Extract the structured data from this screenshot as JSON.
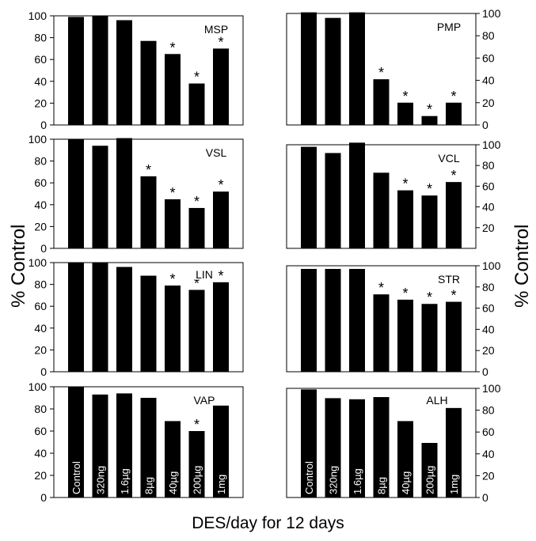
{
  "figure": {
    "ylabel_left": "% Control",
    "ylabel_right": "% Control",
    "xlabel": "DES/day for 12 days"
  },
  "chart_data": [
    {
      "type": "bar",
      "title": "MSP",
      "categories": [
        "Control",
        "320ng",
        "1.6µg",
        "8µg",
        "40µg",
        "200µg",
        "1mg"
      ],
      "values": [
        99,
        100,
        96,
        77,
        65,
        38,
        70
      ],
      "significant": [
        false,
        false,
        false,
        false,
        true,
        true,
        true
      ],
      "ylim": [
        0,
        100
      ],
      "yticks": [
        0,
        20,
        40,
        60,
        80,
        100
      ],
      "axis_side": "left",
      "tick_labels_in_bars": false
    },
    {
      "type": "bar",
      "title": "PMP",
      "categories": [
        "Control",
        "320ng",
        "1.6µg",
        "8µg",
        "40µg",
        "200µg",
        "1mg"
      ],
      "values": [
        101,
        96,
        101,
        41,
        20,
        8,
        20
      ],
      "significant": [
        false,
        false,
        false,
        true,
        true,
        true,
        true
      ],
      "ylim": [
        0,
        100
      ],
      "yticks": [
        0,
        20,
        40,
        60,
        80,
        100
      ],
      "axis_side": "right",
      "tick_labels_in_bars": false
    },
    {
      "type": "bar",
      "title": "VSL",
      "categories": [
        "Control",
        "320ng",
        "1.6µg",
        "8µg",
        "40µg",
        "200µg",
        "1mg"
      ],
      "values": [
        100,
        94,
        101,
        66,
        45,
        37,
        52
      ],
      "significant": [
        false,
        false,
        false,
        true,
        true,
        true,
        true
      ],
      "ylim": [
        0,
        100
      ],
      "yticks": [
        0,
        20,
        40,
        60,
        80,
        100
      ],
      "axis_side": "left",
      "tick_labels_in_bars": false
    },
    {
      "type": "bar",
      "title": "VCL",
      "categories": [
        "Control",
        "320ng",
        "1.6µg",
        "8µg",
        "40µg",
        "200µg",
        "1mg"
      ],
      "values": [
        98,
        92,
        102,
        73,
        56,
        51,
        64
      ],
      "significant": [
        false,
        false,
        false,
        false,
        true,
        true,
        true
      ],
      "ylim": [
        0,
        100
      ],
      "yticks": [
        20,
        40,
        60,
        80,
        100
      ],
      "axis_side": "right",
      "tick_labels_in_bars": false
    },
    {
      "type": "bar",
      "title": "LIN",
      "categories": [
        "Control",
        "320ng",
        "1.6µg",
        "8µg",
        "40µg",
        "200µg",
        "1mg"
      ],
      "values": [
        100,
        100,
        96,
        88,
        79,
        75,
        82
      ],
      "significant": [
        false,
        false,
        false,
        false,
        true,
        true,
        true
      ],
      "ylim": [
        0,
        100
      ],
      "yticks": [
        0,
        20,
        40,
        60,
        80,
        100
      ],
      "axis_side": "left",
      "tick_labels_in_bars": false
    },
    {
      "type": "bar",
      "title": "STR",
      "categories": [
        "Control",
        "320ng",
        "1.6µg",
        "8µg",
        "40µg",
        "200µg",
        "1mg"
      ],
      "values": [
        97,
        97,
        97,
        73,
        68,
        64,
        66
      ],
      "significant": [
        false,
        false,
        false,
        true,
        true,
        true,
        true
      ],
      "ylim": [
        0,
        100
      ],
      "yticks": [
        0,
        20,
        40,
        60,
        80,
        100
      ],
      "axis_side": "right",
      "tick_labels_in_bars": false
    },
    {
      "type": "bar",
      "title": "VAP",
      "categories": [
        "Control",
        "320ng",
        "1.6µg",
        "8µg",
        "40µg",
        "200µg",
        "1mg"
      ],
      "values": [
        100,
        93,
        94,
        90,
        69,
        60,
        83
      ],
      "significant": [
        false,
        false,
        false,
        false,
        false,
        true,
        false
      ],
      "ylim": [
        0,
        100
      ],
      "yticks": [
        0,
        20,
        40,
        60,
        80,
        100
      ],
      "axis_side": "left",
      "tick_labels_in_bars": true
    },
    {
      "type": "bar",
      "title": "ALH",
      "categories": [
        "Control",
        "320ng",
        "1.6µg",
        "8µg",
        "40µg",
        "200µg",
        "1mg"
      ],
      "values": [
        99,
        91,
        90,
        92,
        70,
        50,
        82
      ],
      "significant": [
        false,
        false,
        false,
        false,
        false,
        false,
        false
      ],
      "ylim": [
        0,
        100
      ],
      "yticks": [
        0,
        20,
        40,
        60,
        80,
        100
      ],
      "axis_side": "right",
      "tick_labels_in_bars": true
    }
  ]
}
